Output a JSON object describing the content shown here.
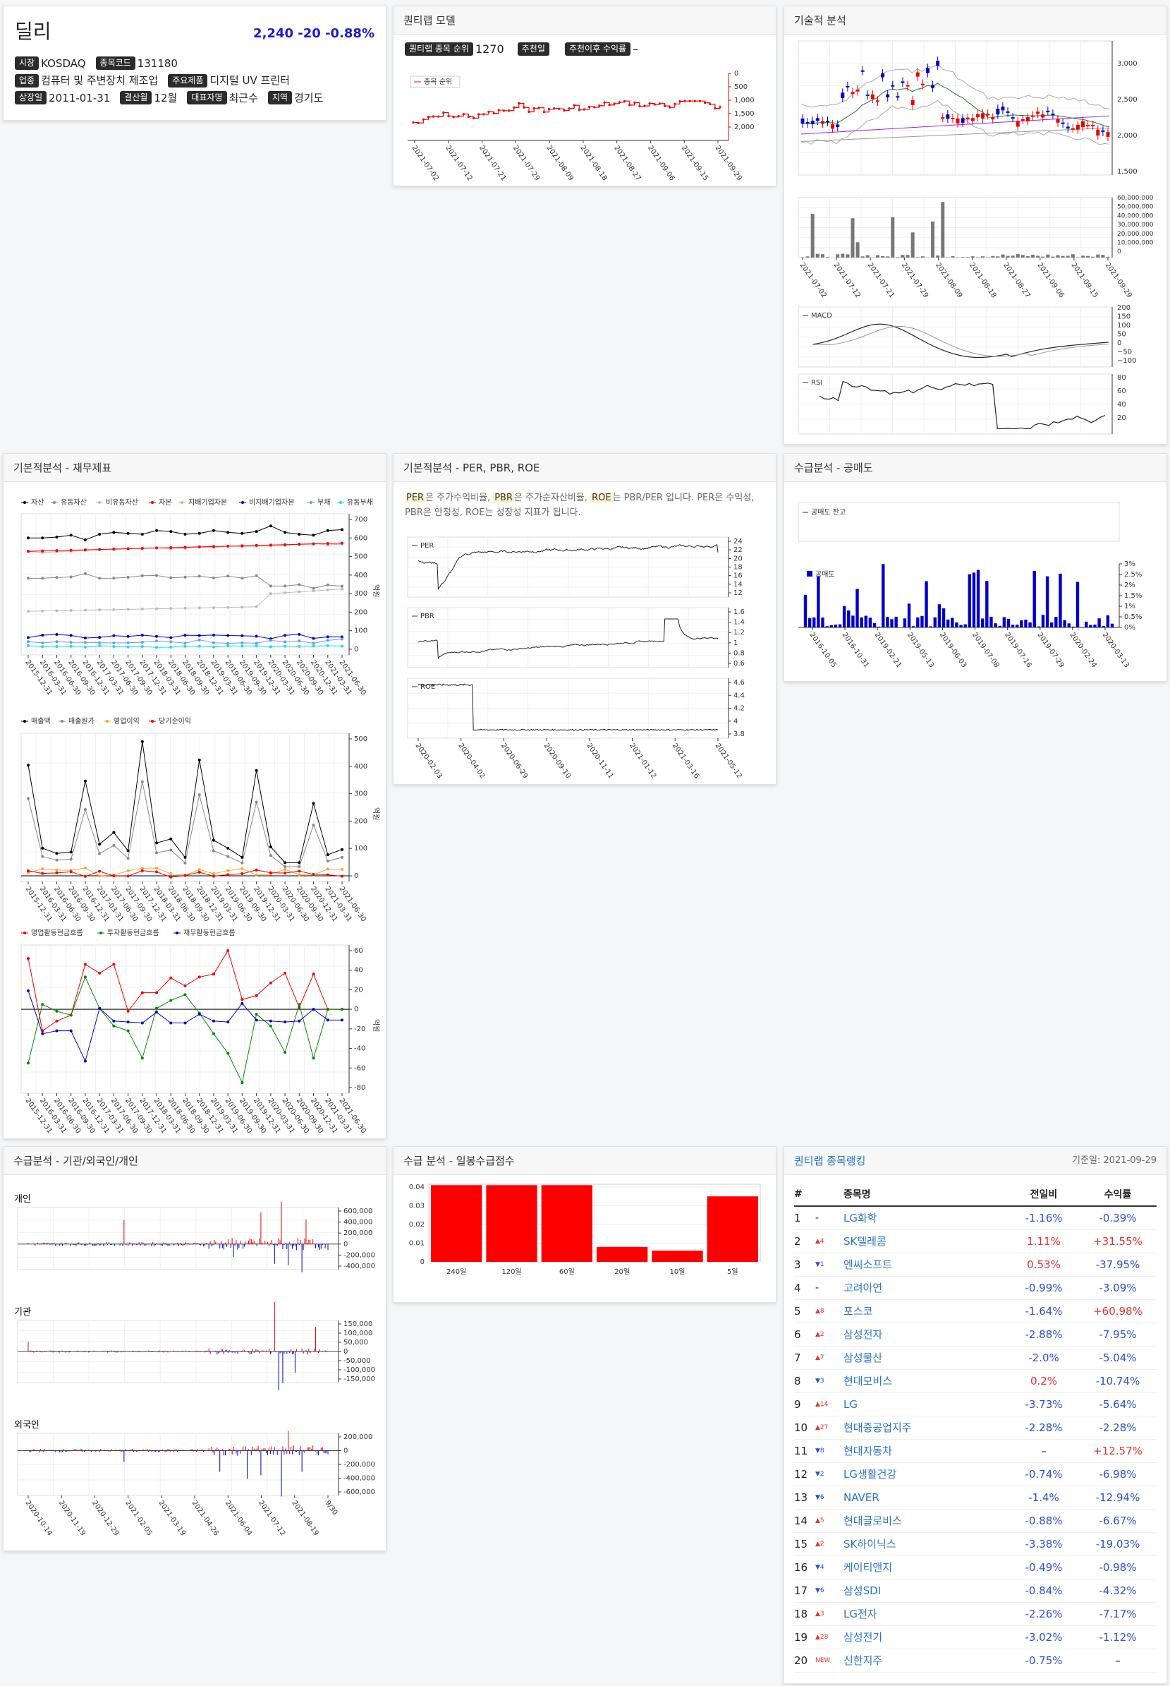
{
  "stock": {
    "name": "딜리",
    "price": "2,240",
    "change": "-20",
    "rate": "-0.88%",
    "fields": [
      [
        {
          "k": "시장",
          "v": "KOSDAQ"
        },
        {
          "k": "종목코드",
          "v": "131180"
        }
      ],
      [
        {
          "k": "업종",
          "v": "컴퓨터 및 주변장치 제조업"
        },
        {
          "k": "주요제품",
          "v": "디지털 UV 프린터"
        }
      ],
      [
        {
          "k": "상장일",
          "v": "2011-01-31"
        },
        {
          "k": "결산월",
          "v": "12월"
        },
        {
          "k": "대표자명",
          "v": "최근수"
        },
        {
          "k": "지역",
          "v": "경기도"
        }
      ]
    ]
  },
  "quant": {
    "title": "퀀티랩 모델",
    "rank_label": "퀀티랩 종목 순위",
    "rank": "1270",
    "rec_label": "추천일",
    "ret_label": "추천이후 수익률",
    "ret": "–",
    "legend": "종목 순위",
    "yticks": [
      "0",
      "500",
      "1,000",
      "1,500",
      "2,000"
    ],
    "xticks": [
      "2021-07-02",
      "2021-07-12",
      "2021-07-21",
      "2021-07-29",
      "2021-08-09",
      "2021-08-18",
      "2021-08-27",
      "2021-09-06",
      "2021-09-15",
      "2021-09-29"
    ]
  },
  "tech": {
    "title": "기술적 분석",
    "price_ticks": [
      "3,000",
      "2,500",
      "2,000",
      "1,500"
    ],
    "vol_ticks": [
      "60,000,000",
      "50,000,000",
      "40,000,000",
      "30,000,000",
      "20,000,000",
      "10,000,000",
      "0"
    ],
    "macd_label": "MACD",
    "macd_ticks": [
      "200",
      "150",
      "100",
      "50",
      "0",
      "−50",
      "−100"
    ],
    "rsi_label": "RSI",
    "rsi_ticks": [
      "80",
      "60",
      "40",
      "20"
    ],
    "xticks": [
      "2021-07-02",
      "2021-07-12",
      "2021-07-21",
      "2021-07-29",
      "2021-08-09",
      "2021-08-18",
      "2021-08-27",
      "2021-09-06",
      "2021-09-15",
      "2021-09-29"
    ]
  },
  "fin": {
    "title": "기본적분석 - 재무제표",
    "unit": "억원",
    "legend1": [
      {
        "n": "자산",
        "c": "#000"
      },
      {
        "n": "유동자산",
        "c": "#888"
      },
      {
        "n": "비유동자산",
        "c": "#bbb"
      },
      {
        "n": "자본",
        "c": "#e00"
      },
      {
        "n": "지배기업자본",
        "c": "#f4a0a0"
      },
      {
        "n": "비지배기업자본",
        "c": "#00c"
      },
      {
        "n": "부채",
        "c": "#6699ff"
      },
      {
        "n": "유동부채",
        "c": "#00e5e5"
      }
    ],
    "ticks1": [
      "700",
      "600",
      "500",
      "400",
      "300",
      "200",
      "100",
      "0"
    ],
    "legend2": [
      {
        "n": "매출액",
        "c": "#000"
      },
      {
        "n": "매출원가",
        "c": "#888"
      },
      {
        "n": "영업이익",
        "c": "#f5a623"
      },
      {
        "n": "당기순이익",
        "c": "#e00"
      }
    ],
    "ticks2": [
      "500",
      "400",
      "300",
      "200",
      "100",
      "0"
    ],
    "legend3": [
      {
        "n": "영업활동현금흐름",
        "c": "#e00"
      },
      {
        "n": "투자활동현금흐름",
        "c": "#080"
      },
      {
        "n": "재무활동현금흐름",
        "c": "#00c"
      }
    ],
    "ticks3": [
      "60",
      "40",
      "20",
      "0",
      "-20",
      "-40",
      "-60",
      "-80"
    ],
    "xticks": [
      "2015-12-31",
      "2016-03-31",
      "2016-06-30",
      "2016-09-30",
      "2016-12-31",
      "2017-03-31",
      "2017-06-30",
      "2017-09-30",
      "2017-12-31",
      "2018-03-31",
      "2018-06-30",
      "2018-09-30",
      "2018-12-31",
      "2019-03-31",
      "2019-06-30",
      "2019-09-30",
      "2019-12-31",
      "2020-03-31",
      "2020-06-30",
      "2020-09-30",
      "2020-12-31",
      "2021-03-31",
      "2021-06-30"
    ]
  },
  "per": {
    "title": "기본적분석 - PER, PBR, ROE",
    "desc": [
      {
        "t": "PER",
        "hl": true
      },
      {
        "t": "은 주가수익비율, ",
        "hl": false
      },
      {
        "t": "PBR",
        "hl": true
      },
      {
        "t": "은 주가순자산비율, ",
        "hl": false
      },
      {
        "t": "ROE",
        "hl": true
      },
      {
        "t": "는 PBR/PER 입니다. PER은 수익성, PBR은 안정성, ROE는 성장성 지표가 됩니다.",
        "hl": false
      }
    ],
    "per_label": "PER",
    "per_ticks": [
      "24",
      "22",
      "20",
      "18",
      "16",
      "14",
      "12"
    ],
    "pbr_label": "PBR",
    "pbr_ticks": [
      "1.6",
      "1.4",
      "1.2",
      "1",
      "0.8",
      "0.6"
    ],
    "roe_label": "ROE",
    "roe_ticks": [
      "4.6",
      "4.4",
      "4.2",
      "4",
      "3.8"
    ],
    "xticks": [
      "2020-02-03",
      "2020-04-02",
      "2020-06-29",
      "2020-09-10",
      "2020-11-11",
      "2021-01-12",
      "2021-03-16",
      "2021-05-12"
    ]
  },
  "short": {
    "title": "수급분석 - 공매도",
    "bal_label": "공매도 잔고",
    "vol_label": "공매도",
    "ticks": [
      "3%",
      "2.5%",
      "2%",
      "1.5%",
      "1%",
      "0.5%",
      "0%"
    ],
    "xticks": [
      "2016-10-05",
      "2016-10-31",
      "2019-02-21",
      "2019-05-13",
      "2019-06-03",
      "2019-07-08",
      "2019-07-16",
      "2019-07-29",
      "2020-02-24",
      "2020-03-13"
    ]
  },
  "flow": {
    "title": "수급분석 - 기관/외국인/개인",
    "p1": "개인",
    "p2": "기관",
    "p3": "외국인",
    "t1": [
      "600,000",
      "400,000",
      "200,000",
      "0",
      "-200,000",
      "-400,000"
    ],
    "t2": [
      "150,000",
      "100,000",
      "50,000",
      "0",
      "-50,000",
      "-100,000",
      "-150,000"
    ],
    "t3": [
      "200,000",
      "0",
      "-200,000",
      "-400,000",
      "-600,000"
    ],
    "xticks": [
      "2020-10-14",
      "2020-11-19",
      "2020-12-29",
      "2021-02-05",
      "2021-03-19",
      "2021-04-26",
      "2021-06-04",
      "2021-07-12",
      "2021-08-19",
      "9/30"
    ]
  },
  "score": {
    "title": "수급 분석 - 일봉수급점수",
    "categories": [
      "240일",
      "120일",
      "60일",
      "20일",
      "10일",
      "5일"
    ],
    "values": [
      0.041,
      0.041,
      0.041,
      0.008,
      0.006,
      0.035
    ],
    "yticks": [
      "0.04",
      "0.03",
      "0.02",
      "0.01",
      "0"
    ]
  },
  "rank": {
    "title": "퀀티랩 종목랭킹",
    "date": "기준일: 2021-09-29",
    "headers": [
      "#",
      "종목명",
      "전일비",
      "수익률"
    ],
    "rows": [
      {
        "n": "1",
        "ch": "-",
        "dir": "",
        "name": "LG화학",
        "d": "-1.16%",
        "r": "-0.39%"
      },
      {
        "n": "2",
        "ch": "▲4",
        "dir": "up",
        "name": "SK텔레콤",
        "d": "1.11%",
        "r": "+31.55%"
      },
      {
        "n": "3",
        "ch": "▼1",
        "dir": "dn",
        "name": "엔씨소프트",
        "d": "0.53%",
        "r": "-37.95%"
      },
      {
        "n": "4",
        "ch": "-",
        "dir": "",
        "name": "고려아연",
        "d": "-0.99%",
        "r": "-3.09%"
      },
      {
        "n": "5",
        "ch": "▲8",
        "dir": "up",
        "name": "포스코",
        "d": "-1.64%",
        "r": "+60.98%"
      },
      {
        "n": "6",
        "ch": "▲2",
        "dir": "up",
        "name": "삼성전자",
        "d": "-2.88%",
        "r": "-7.95%"
      },
      {
        "n": "7",
        "ch": "▲7",
        "dir": "up",
        "name": "삼성물산",
        "d": "-2.0%",
        "r": "-5.04%"
      },
      {
        "n": "8",
        "ch": "▼3",
        "dir": "dn",
        "name": "현대모비스",
        "d": "0.2%",
        "r": "-10.74%"
      },
      {
        "n": "9",
        "ch": "▲14",
        "dir": "up",
        "name": "LG",
        "d": "-3.73%",
        "r": "-5.64%"
      },
      {
        "n": "10",
        "ch": "▲27",
        "dir": "up",
        "name": "현대중공업지주",
        "d": "-2.28%",
        "r": "-2.28%"
      },
      {
        "n": "11",
        "ch": "▼8",
        "dir": "dn",
        "name": "현대자동차",
        "d": "–",
        "r": "+12.57%"
      },
      {
        "n": "12",
        "ch": "▼2",
        "dir": "dn",
        "name": "LG생활건강",
        "d": "-0.74%",
        "r": "-6.98%"
      },
      {
        "n": "13",
        "ch": "▼6",
        "dir": "dn",
        "name": "NAVER",
        "d": "-1.4%",
        "r": "-12.94%"
      },
      {
        "n": "14",
        "ch": "▲5",
        "dir": "up",
        "name": "현대글로비스",
        "d": "-0.88%",
        "r": "-6.67%"
      },
      {
        "n": "15",
        "ch": "▲2",
        "dir": "up",
        "name": "SK하이닉스",
        "d": "-3.38%",
        "r": "-19.03%"
      },
      {
        "n": "16",
        "ch": "▼4",
        "dir": "dn",
        "name": "케이티앤지",
        "d": "-0.49%",
        "r": "-0.98%"
      },
      {
        "n": "17",
        "ch": "▼6",
        "dir": "dn",
        "name": "삼성SDI",
        "d": "-0.84%",
        "r": "-4.32%"
      },
      {
        "n": "18",
        "ch": "▲3",
        "dir": "up",
        "name": "LG전자",
        "d": "-2.26%",
        "r": "-7.17%"
      },
      {
        "n": "19",
        "ch": "▲28",
        "dir": "up",
        "name": "삼성전기",
        "d": "-3.02%",
        "r": "-1.12%"
      },
      {
        "n": "20",
        "ch": "NEW",
        "dir": "new",
        "name": "신한지주",
        "d": "-0.75%",
        "r": "–"
      }
    ]
  }
}
